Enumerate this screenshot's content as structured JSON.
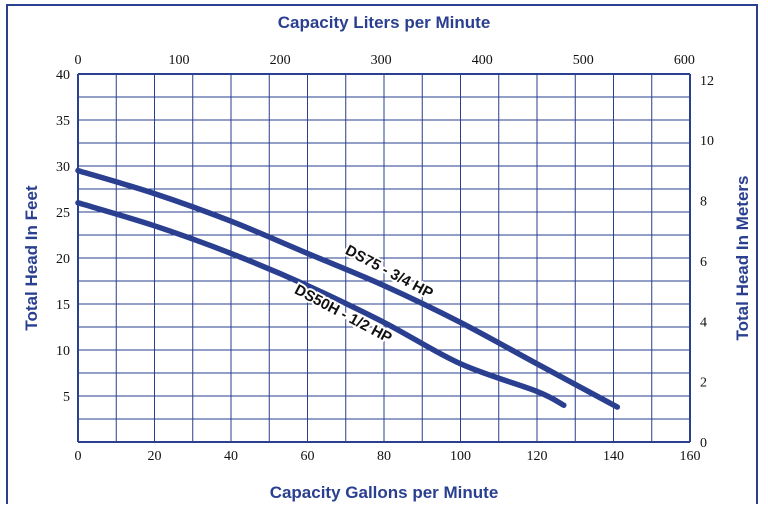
{
  "chart_data": {
    "type": "line",
    "title": "",
    "xlabel": "Capacity Gallons per Minute",
    "ylabel": "Total Head In Feet",
    "x2label": "Capacity Liters per Minute",
    "y2label": "Total Head In Meters",
    "xlim": [
      0,
      160
    ],
    "ylim": [
      0,
      40
    ],
    "x_ticks": [
      "0",
      "20",
      "40",
      "60",
      "80",
      "100",
      "120",
      "140",
      "160"
    ],
    "y_ticks": [
      "5",
      "10",
      "15",
      "20",
      "25",
      "30",
      "35",
      "40"
    ],
    "x2_ticks": [
      "0",
      "100",
      "200",
      "300",
      "400",
      "500",
      "600"
    ],
    "y2_ticks": [
      "0",
      "2",
      "4",
      "6",
      "8",
      "10",
      "12"
    ],
    "grid": true,
    "colors": {
      "accent": "#2a3f8f",
      "grid": "#2a3f8f",
      "curve": "#2a3f8f"
    },
    "series": [
      {
        "name": "DS75 - 3/4 HP",
        "x": [
          0,
          20,
          40,
          60,
          80,
          100,
          120,
          141
        ],
        "y": [
          29.5,
          27.0,
          24.0,
          20.5,
          17.0,
          13.0,
          8.5,
          3.8
        ]
      },
      {
        "name": "DS50H - 1/2 HP",
        "x": [
          0,
          20,
          40,
          60,
          80,
          100,
          120,
          127
        ],
        "y": [
          26.0,
          23.5,
          20.5,
          17.0,
          13.0,
          8.5,
          5.5,
          4.0
        ]
      }
    ]
  }
}
